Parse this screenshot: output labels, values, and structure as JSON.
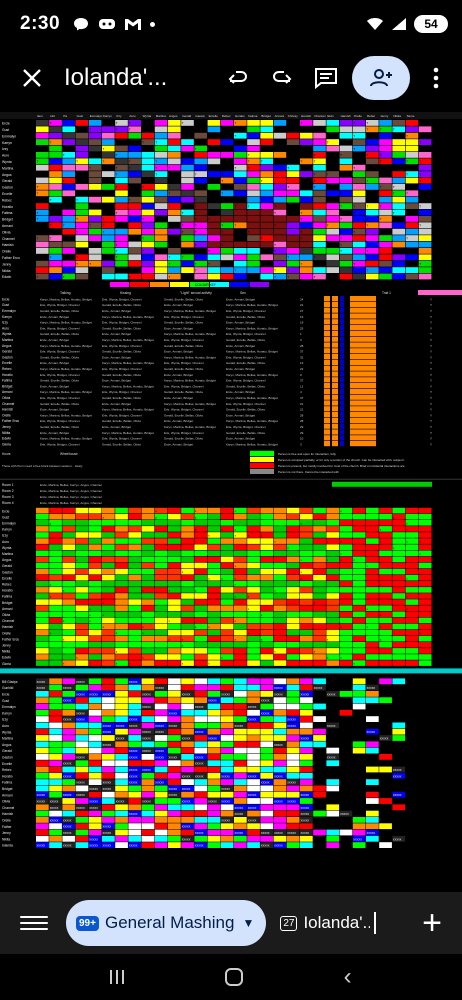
{
  "status_bar": {
    "time": "2:30",
    "battery": "54"
  },
  "app_bar": {
    "title": "Iolanda'..."
  },
  "sheet": {
    "header_names": [
      "Item",
      "Hid",
      "Pa",
      "Gust",
      "Emmalyn",
      "Karryn",
      "Izzy",
      "Auro",
      "Wynta",
      "Martina",
      "Angus",
      "Gerald",
      "Gaston",
      "Ercelle",
      "Rebec",
      "Horatio",
      "Fatima",
      "Bridget",
      "Armani",
      "Chrissy",
      "Hamish",
      "Channel",
      "Elvin",
      "Hamish",
      "Orelle",
      "Rebel",
      "Jenny",
      "Nikita",
      "Stone"
    ],
    "row_names": [
      "Ercie",
      "Gust",
      "Emmalyn",
      "Karryn",
      "Izzy",
      "Auro",
      "Wynta",
      "Martina",
      "Angus",
      "Gerald",
      "Gaston",
      "Ercelle",
      "Rebec",
      "Horatio",
      "Fatima",
      "Bridget",
      "Armani",
      "Olivia",
      "Channel",
      "Hamish",
      "Orelle",
      "Father Ercu",
      "Jenny",
      "Nikita",
      "Edwin"
    ],
    "row_names_2": [
      "Ercie",
      "Gust",
      "Emmalyn",
      "Karryn",
      "Izzy",
      "Auro",
      "Wynta",
      "Martina",
      "Angus",
      "Gerald",
      "Gaston",
      "Ercelle",
      "Rebec",
      "Horatio",
      "Fatima",
      "Bridget",
      "Armani",
      "Olivia",
      "Channel",
      "Hamish",
      "Orelle",
      "Father Ercu",
      "Jenny",
      "Nikita",
      "Edwin",
      "Gloria"
    ],
    "section_labels": [
      "Talking",
      "Kissing",
      "\"Light\" sexual activity",
      "Sex",
      "COLOUR KEY",
      "Mashing",
      "Wheelhouse",
      "Trait 1",
      "Wednesday",
      "Sexual",
      "Hasty"
    ],
    "legend": [
      "Person is free and open for interaction, fully",
      "Person is occupied partially, or for only a portion of the church. Can be interacted with, subject t",
      "Person is present, but mostly involved for most of the church. Brief or incidental interactions are",
      "Person is not there. Cannot be interacted with"
    ],
    "sub_table": [
      "Room 1",
      "Room 2",
      "Room 3",
      "Room 4"
    ],
    "third_rows": [
      "Bill Gladys",
      "Gunhild",
      "Ercie",
      "Gust",
      "Emmalyn",
      "Karryn",
      "Izzy",
      "Auro",
      "Wynta",
      "Martina",
      "Angus",
      "Gerald",
      "Gaston",
      "Ercelle",
      "Rebec",
      "Horatio",
      "Fatima",
      "Bridget",
      "Armani",
      "Olivia",
      "Channel",
      "Hamish",
      "Orelle",
      "Father",
      "Jenny",
      "Nikita",
      "Iolanda"
    ],
    "cell_mark": "XXXXX"
  },
  "tabs": {
    "active_badge": "99+",
    "active_label": "General Mashing",
    "inactive_num": "27",
    "inactive_label": "Iolanda'..."
  },
  "colors": {
    "accent": "#d3e3fd",
    "tab_badge": "#0b57d0"
  }
}
